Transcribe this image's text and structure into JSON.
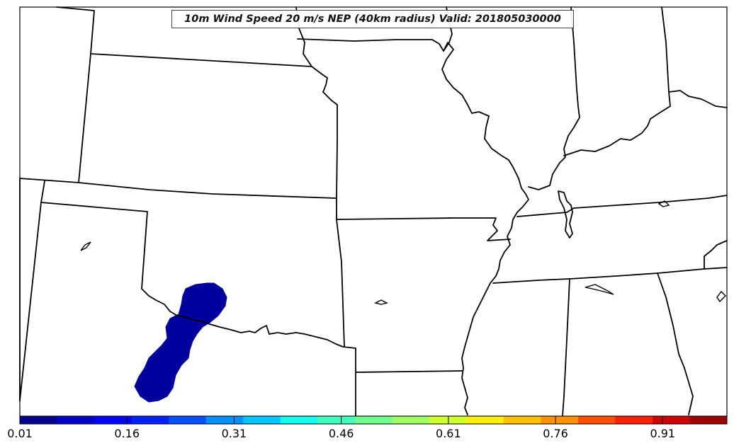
{
  "title": "10m Wind Speed 20 m/s NEP (40km radius) Valid: 201805030000",
  "colorbar": {
    "min": 0.01,
    "max": 1.0,
    "tick_labels": [
      "0.01",
      "0.16",
      "0.31",
      "0.46",
      "0.61",
      "0.76",
      "0.91"
    ],
    "tick_values": [
      0.01,
      0.16,
      0.31,
      0.46,
      0.61,
      0.76,
      0.91
    ],
    "colors": [
      "#00008f",
      "#0000c8",
      "#0000ff",
      "#0020ff",
      "#0050ff",
      "#0090ff",
      "#00c8ff",
      "#10ffee",
      "#40ffbf",
      "#70ff8f",
      "#a0ff60",
      "#d0ff30",
      "#fff000",
      "#ffc000",
      "#ff9000",
      "#ff5000",
      "#ff2000",
      "#d00000",
      "#9c0000"
    ]
  },
  "nep_region_color": "#00009c"
}
